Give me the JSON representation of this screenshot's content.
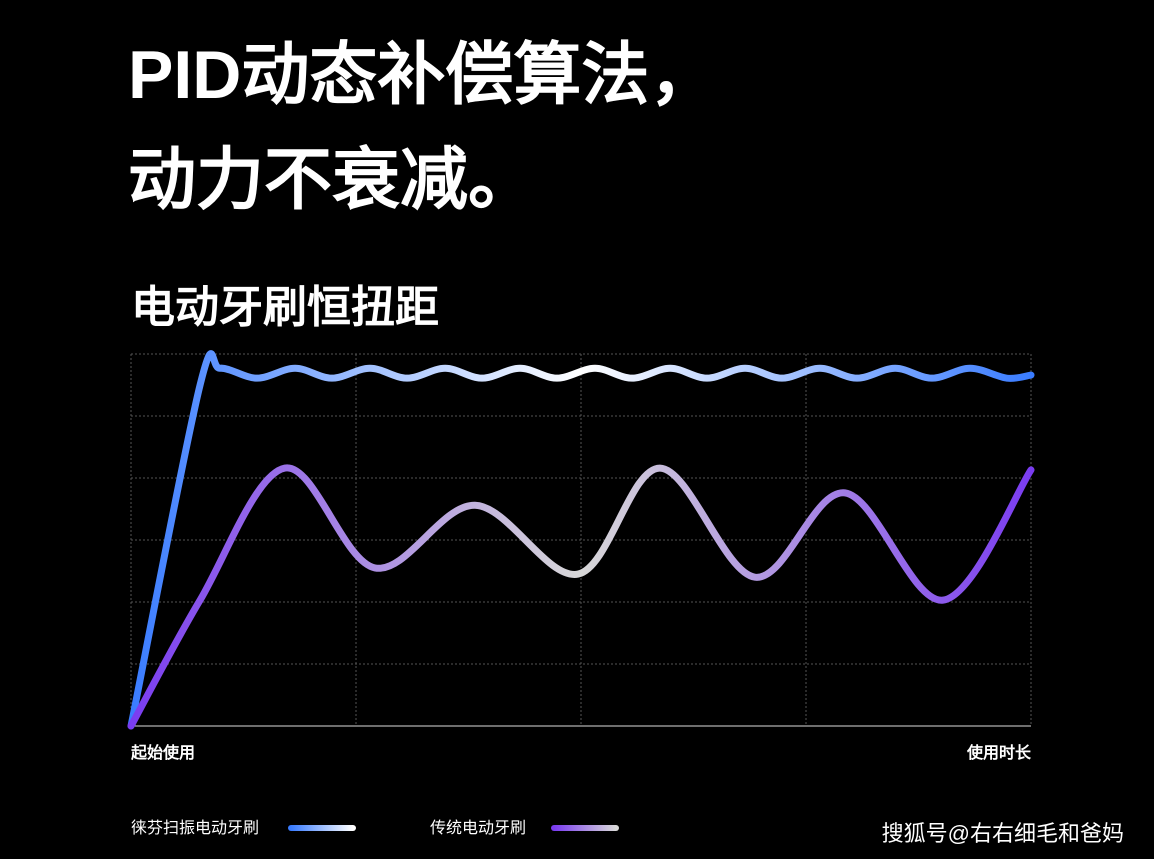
{
  "chart_data": {
    "type": "line",
    "title": [
      "PID动态补偿算法，",
      "动力不衰减。"
    ],
    "subtitle": "电动牙刷恒扭距",
    "axis_labels": [
      "起始使用",
      "使用时长"
    ],
    "annotation": "搜狐号@右右细毛和爸妈",
    "xlim": [
      0,
      4
    ],
    "ylim": [
      0,
      6
    ],
    "xticks": [
      0,
      1,
      2,
      3,
      4
    ],
    "yticks": [
      0,
      1,
      2,
      3,
      4,
      5,
      6
    ],
    "grid": true,
    "series": [
      {
        "name": "徕芬扫振电动牙刷",
        "color": [
          "#3a7cff",
          "#ffffff",
          "#3a7cff"
        ],
        "x": [
          0,
          0.307,
          0.396,
          0.56,
          0.729,
          0.893,
          1.062,
          1.227,
          1.396,
          1.56,
          1.729,
          1.893,
          2.062,
          2.227,
          2.396,
          2.56,
          2.729,
          2.893,
          3.062,
          3.227,
          3.396,
          3.56,
          3.729,
          3.893,
          4
        ],
        "values": [
          0,
          5.5,
          5.77,
          5.61,
          5.77,
          5.61,
          5.77,
          5.61,
          5.77,
          5.61,
          5.77,
          5.61,
          5.77,
          5.61,
          5.77,
          5.61,
          5.77,
          5.61,
          5.77,
          5.61,
          5.77,
          5.61,
          5.77,
          5.61,
          5.66
        ]
      },
      {
        "name": "传统电动牙刷",
        "color": [
          "#7a3cf0",
          "#d8d8d8",
          "#7a3cf0"
        ],
        "x": [
          0,
          0.307,
          0.684,
          1.084,
          1.529,
          1.987,
          2.351,
          2.773,
          3.173,
          3.609,
          4
        ],
        "values": [
          0,
          2.03,
          4.16,
          2.55,
          3.56,
          2.45,
          4.16,
          2.4,
          3.76,
          2.03,
          4.13
        ]
      }
    ]
  }
}
